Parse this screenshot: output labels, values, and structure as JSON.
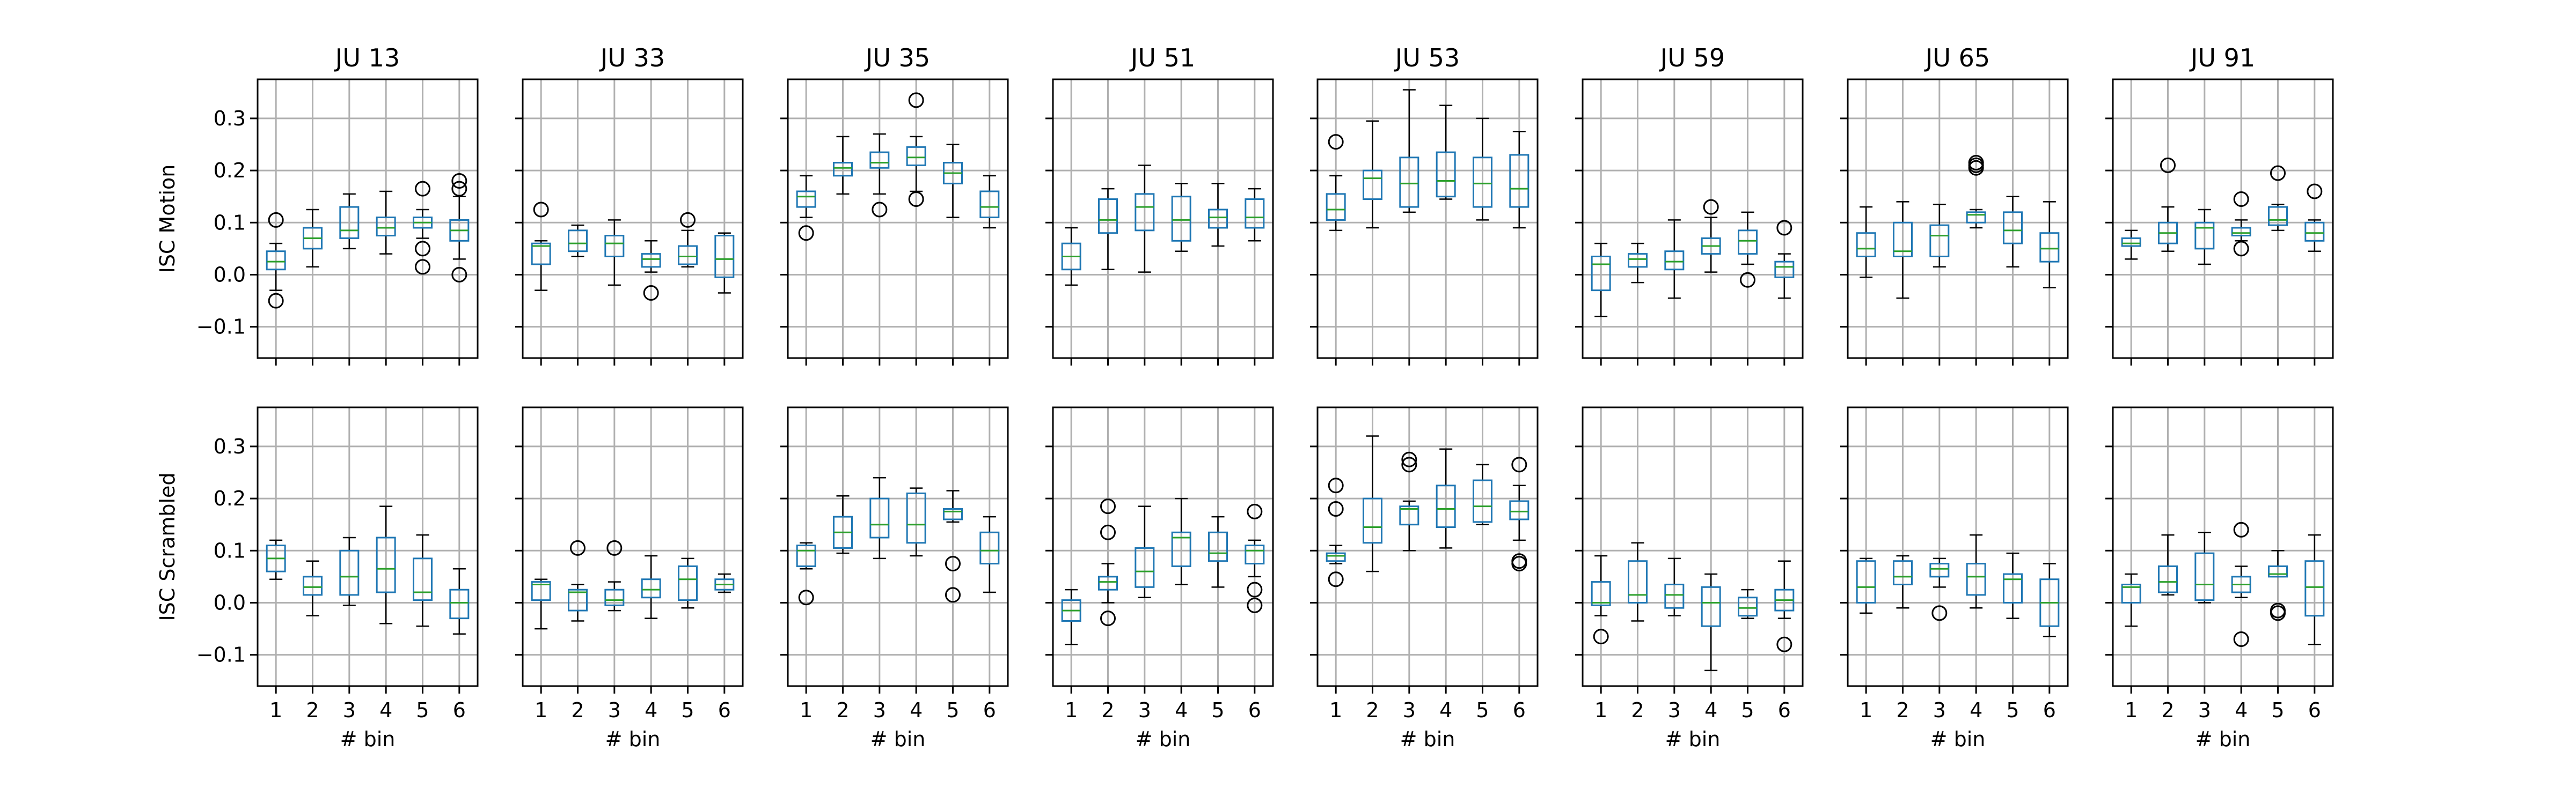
{
  "chart_data": {
    "type": "box",
    "columns": [
      "JU 13",
      "JU 33",
      "JU 35",
      "JU 51",
      "JU 53",
      "JU 59",
      "JU 65",
      "JU 91"
    ],
    "rows": [
      "ISC Motion",
      "ISC Scrambled"
    ],
    "xlabel": "# bin",
    "categories": [
      "1",
      "2",
      "3",
      "4",
      "5",
      "6"
    ],
    "ylim": [
      -0.16,
      0.375
    ],
    "yticks": [
      "−0.1",
      "0.0",
      "0.1",
      "0.2",
      "0.3"
    ],
    "grid": true,
    "box_color": "#1f77b4",
    "median_color": "#2ca02c",
    "note": "each box: [whisker_low, q1, median, q3, whisker_high, [outliers]]",
    "panels": [
      [
        [
          [
            -0.03,
            0.01,
            0.025,
            0.045,
            0.06,
            [
              0.105,
              -0.05
            ]
          ],
          [
            0.015,
            0.05,
            0.07,
            0.09,
            0.125,
            []
          ],
          [
            0.05,
            0.07,
            0.085,
            0.13,
            0.155,
            []
          ],
          [
            0.04,
            0.075,
            0.09,
            0.11,
            0.16,
            []
          ],
          [
            0.07,
            0.09,
            0.1,
            0.11,
            0.125,
            [
              0.165,
              0.05,
              0.015
            ]
          ],
          [
            0.03,
            0.065,
            0.085,
            0.105,
            0.15,
            [
              0.18,
              0.165,
              0.0
            ]
          ]
        ],
        [
          [
            0.045,
            0.06,
            0.085,
            0.11,
            0.12,
            []
          ],
          [
            -0.025,
            0.015,
            0.03,
            0.05,
            0.08,
            []
          ],
          [
            -0.005,
            0.015,
            0.05,
            0.1,
            0.125,
            []
          ],
          [
            -0.04,
            0.02,
            0.065,
            0.125,
            0.185,
            []
          ],
          [
            -0.045,
            0.005,
            0.02,
            0.085,
            0.13,
            []
          ],
          [
            -0.06,
            -0.03,
            0.0,
            0.025,
            0.065,
            []
          ]
        ]
      ],
      [
        [
          [
            -0.03,
            0.02,
            0.055,
            0.06,
            0.065,
            [
              0.125
            ]
          ],
          [
            0.035,
            0.045,
            0.06,
            0.085,
            0.095,
            []
          ],
          [
            -0.02,
            0.035,
            0.06,
            0.075,
            0.105,
            []
          ],
          [
            0.005,
            0.015,
            0.03,
            0.04,
            0.065,
            [
              -0.035
            ]
          ],
          [
            0.015,
            0.02,
            0.035,
            0.055,
            0.085,
            [
              0.105
            ]
          ],
          [
            -0.035,
            -0.005,
            0.03,
            0.075,
            0.08,
            []
          ]
        ],
        [
          [
            -0.05,
            0.005,
            0.035,
            0.04,
            0.045,
            []
          ],
          [
            -0.035,
            -0.015,
            0.02,
            0.025,
            0.035,
            [
              0.105
            ]
          ],
          [
            -0.015,
            -0.005,
            0.005,
            0.025,
            0.04,
            [
              0.105
            ]
          ],
          [
            -0.03,
            0.01,
            0.025,
            0.045,
            0.09,
            []
          ],
          [
            -0.01,
            0.005,
            0.045,
            0.07,
            0.085,
            []
          ],
          [
            0.02,
            0.025,
            0.035,
            0.045,
            0.055,
            []
          ]
        ]
      ],
      [
        [
          [
            0.11,
            0.13,
            0.15,
            0.16,
            0.19,
            [
              0.08
            ]
          ],
          [
            0.155,
            0.19,
            0.205,
            0.215,
            0.265,
            []
          ],
          [
            0.155,
            0.205,
            0.215,
            0.235,
            0.27,
            [
              0.125
            ]
          ],
          [
            0.16,
            0.21,
            0.225,
            0.245,
            0.265,
            [
              0.335,
              0.145
            ]
          ],
          [
            0.11,
            0.175,
            0.195,
            0.215,
            0.25,
            []
          ],
          [
            0.09,
            0.11,
            0.13,
            0.16,
            0.19,
            []
          ]
        ],
        [
          [
            0.065,
            0.07,
            0.1,
            0.11,
            0.115,
            [
              0.01
            ]
          ],
          [
            0.095,
            0.105,
            0.135,
            0.165,
            0.205,
            []
          ],
          [
            0.085,
            0.125,
            0.15,
            0.2,
            0.24,
            []
          ],
          [
            0.09,
            0.115,
            0.15,
            0.21,
            0.22,
            []
          ],
          [
            0.155,
            0.16,
            0.175,
            0.18,
            0.215,
            [
              0.075,
              0.015
            ]
          ],
          [
            0.02,
            0.075,
            0.1,
            0.135,
            0.165,
            []
          ]
        ]
      ],
      [
        [
          [
            -0.02,
            0.01,
            0.035,
            0.06,
            0.09,
            []
          ],
          [
            0.01,
            0.08,
            0.105,
            0.145,
            0.165,
            []
          ],
          [
            0.005,
            0.085,
            0.13,
            0.155,
            0.21,
            []
          ],
          [
            0.045,
            0.065,
            0.105,
            0.15,
            0.175,
            []
          ],
          [
            0.055,
            0.09,
            0.11,
            0.125,
            0.175,
            []
          ],
          [
            0.065,
            0.09,
            0.11,
            0.145,
            0.165,
            []
          ]
        ],
        [
          [
            -0.08,
            -0.035,
            -0.015,
            0.005,
            0.025,
            []
          ],
          [
            0.0,
            0.025,
            0.04,
            0.05,
            0.075,
            [
              0.185,
              0.135,
              -0.03
            ]
          ],
          [
            0.01,
            0.03,
            0.06,
            0.105,
            0.185,
            []
          ],
          [
            0.035,
            0.07,
            0.125,
            0.135,
            0.2,
            []
          ],
          [
            0.03,
            0.08,
            0.095,
            0.135,
            0.165,
            []
          ],
          [
            0.05,
            0.075,
            0.1,
            0.11,
            0.12,
            [
              0.175,
              0.025,
              -0.005
            ]
          ]
        ]
      ],
      [
        [
          [
            0.085,
            0.105,
            0.125,
            0.155,
            0.19,
            [
              0.255
            ]
          ],
          [
            0.09,
            0.145,
            0.185,
            0.2,
            0.295,
            []
          ],
          [
            0.12,
            0.13,
            0.175,
            0.225,
            0.355,
            []
          ],
          [
            0.145,
            0.15,
            0.18,
            0.235,
            0.325,
            []
          ],
          [
            0.105,
            0.13,
            0.175,
            0.225,
            0.3,
            []
          ],
          [
            0.09,
            0.13,
            0.165,
            0.23,
            0.275,
            []
          ]
        ],
        [
          [
            0.075,
            0.08,
            0.09,
            0.095,
            0.11,
            [
              0.225,
              0.18,
              0.045
            ]
          ],
          [
            0.06,
            0.115,
            0.145,
            0.2,
            0.32,
            []
          ],
          [
            0.1,
            0.15,
            0.18,
            0.185,
            0.195,
            [
              0.275,
              0.265
            ]
          ],
          [
            0.105,
            0.145,
            0.18,
            0.225,
            0.295,
            []
          ],
          [
            0.15,
            0.155,
            0.185,
            0.235,
            0.265,
            []
          ],
          [
            0.12,
            0.16,
            0.175,
            0.195,
            0.225,
            [
              0.265,
              0.08,
              0.075
            ]
          ]
        ]
      ],
      [
        [
          [
            -0.08,
            -0.03,
            0.02,
            0.035,
            0.06,
            []
          ],
          [
            -0.015,
            0.015,
            0.03,
            0.04,
            0.06,
            []
          ],
          [
            -0.045,
            0.01,
            0.025,
            0.045,
            0.105,
            []
          ],
          [
            0.005,
            0.04,
            0.055,
            0.07,
            0.11,
            [
              0.13
            ]
          ],
          [
            0.02,
            0.04,
            0.065,
            0.085,
            0.12,
            [
              -0.01
            ]
          ],
          [
            -0.045,
            -0.005,
            0.015,
            0.025,
            0.04,
            [
              0.09
            ]
          ]
        ],
        [
          [
            -0.025,
            -0.005,
            0.0,
            0.04,
            0.09,
            [
              -0.065
            ]
          ],
          [
            -0.035,
            0.0,
            0.015,
            0.08,
            0.115,
            []
          ],
          [
            -0.025,
            -0.01,
            0.015,
            0.035,
            0.085,
            []
          ],
          [
            -0.13,
            -0.045,
            0.0,
            0.03,
            0.055,
            []
          ],
          [
            -0.03,
            -0.025,
            -0.01,
            0.01,
            0.025,
            []
          ],
          [
            -0.03,
            -0.015,
            0.005,
            0.025,
            0.08,
            [
              -0.08
            ]
          ]
        ]
      ],
      [
        [
          [
            -0.005,
            0.035,
            0.05,
            0.08,
            0.13,
            []
          ],
          [
            -0.045,
            0.035,
            0.045,
            0.1,
            0.14,
            []
          ],
          [
            0.015,
            0.035,
            0.075,
            0.095,
            0.135,
            []
          ],
          [
            0.09,
            0.1,
            0.115,
            0.12,
            0.125,
            [
              0.215,
              0.21,
              0.205
            ]
          ],
          [
            0.015,
            0.06,
            0.085,
            0.12,
            0.15,
            []
          ],
          [
            -0.025,
            0.025,
            0.05,
            0.08,
            0.14,
            []
          ]
        ],
        [
          [
            -0.02,
            0.0,
            0.03,
            0.08,
            0.085,
            []
          ],
          [
            -0.01,
            0.035,
            0.05,
            0.08,
            0.09,
            []
          ],
          [
            0.03,
            0.05,
            0.065,
            0.075,
            0.085,
            [
              -0.02
            ]
          ],
          [
            -0.01,
            0.015,
            0.05,
            0.075,
            0.13,
            []
          ],
          [
            -0.03,
            0.0,
            0.045,
            0.055,
            0.095,
            []
          ],
          [
            -0.065,
            -0.045,
            0.0,
            0.045,
            0.075,
            []
          ]
        ]
      ],
      [
        [
          [
            0.03,
            0.055,
            0.06,
            0.07,
            0.085,
            []
          ],
          [
            0.045,
            0.06,
            0.08,
            0.1,
            0.13,
            [
              0.21
            ]
          ],
          [
            0.02,
            0.05,
            0.09,
            0.1,
            0.125,
            []
          ],
          [
            0.065,
            0.075,
            0.08,
            0.09,
            0.105,
            [
              0.145,
              0.05
            ]
          ],
          [
            0.085,
            0.095,
            0.105,
            0.13,
            0.135,
            [
              0.195
            ]
          ],
          [
            0.045,
            0.065,
            0.08,
            0.1,
            0.105,
            [
              0.16
            ]
          ]
        ],
        [
          [
            -0.045,
            0.0,
            0.03,
            0.035,
            0.055,
            []
          ],
          [
            0.015,
            0.02,
            0.04,
            0.07,
            0.13,
            []
          ],
          [
            0.0,
            0.005,
            0.035,
            0.095,
            0.135,
            []
          ],
          [
            0.01,
            0.02,
            0.035,
            0.05,
            0.07,
            [
              0.14,
              -0.07
            ]
          ],
          [
            0.05,
            0.05,
            0.055,
            0.07,
            0.1,
            [
              -0.015,
              -0.02
            ]
          ],
          [
            -0.08,
            -0.025,
            0.03,
            0.08,
            0.13,
            []
          ]
        ]
      ]
    ]
  }
}
